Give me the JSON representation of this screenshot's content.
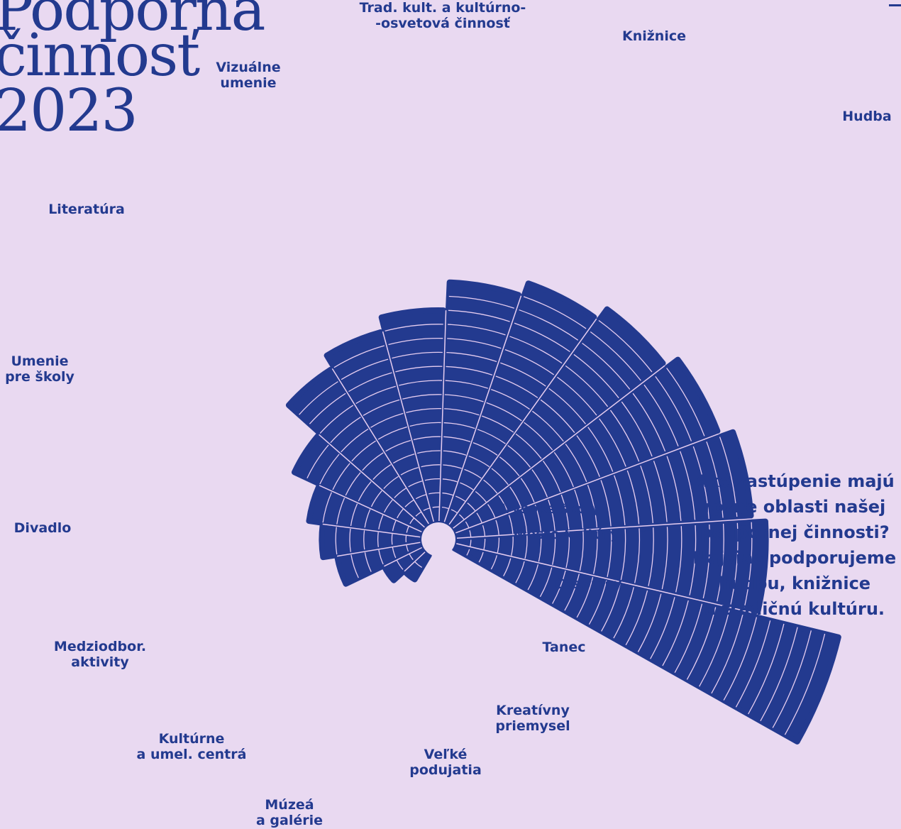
{
  "title": {
    "line1": "Podporná",
    "line2": "činnosť",
    "line3": "2023"
  },
  "note": {
    "line1": "Aké zastúpenie majú",
    "line2": "rôzne oblasti našej",
    "line3": "podpornej činnosti?",
    "line4": "Najviac podporujeme",
    "line5": "hudbu, knižnice",
    "line6": "a tradičnú kultúru."
  },
  "colors": {
    "background": "#e9d9f1",
    "bars": "#233a8f",
    "grid": "#e6cdf0"
  },
  "chart_data": {
    "type": "radial-bar",
    "title": "Podporná činnosť 2023",
    "categories": [
      {
        "label_lines": [
          "Hudba"
        ],
        "value": 28
      },
      {
        "label_lines": [
          "Knižnice"
        ],
        "value": 22
      },
      {
        "label_lines": [
          "Trad. kult. a kultúrno-",
          "-osvetová činnosť"
        ],
        "value": 21
      },
      {
        "label_lines": [
          "Vizuálne",
          "umenie"
        ],
        "value": 20
      },
      {
        "label_lines": [
          "Literatúra"
        ],
        "value": 19
      },
      {
        "label_lines": [
          "Umenie",
          "pre školy"
        ],
        "value": 18
      },
      {
        "label_lines": [
          "Divadlo"
        ],
        "value": 17
      },
      {
        "label_lines": [
          "Medziodbor.",
          "aktivity"
        ],
        "value": 15
      },
      {
        "label_lines": [
          "Kultúrne",
          "a umel. centrá"
        ],
        "value": 14
      },
      {
        "label_lines": [
          "Múzeá",
          "a galérie"
        ],
        "value": 13
      },
      {
        "label_lines": [
          "Veľké",
          "podujatia"
        ],
        "value": 10
      },
      {
        "label_lines": [
          "Kreatívny",
          "priemysel"
        ],
        "value": 8
      },
      {
        "label_lines": [
          "Tanec"
        ],
        "value": 7
      },
      {
        "label_lines": [
          "Časopisy"
        ],
        "value": 6
      },
      {
        "label_lines": [
          "Mesto kultúry"
        ],
        "value": 3
      },
      {
        "label_lines": [
          "Vysoké školy"
        ],
        "value": 2
      }
    ],
    "grid": true,
    "legend": "none"
  }
}
